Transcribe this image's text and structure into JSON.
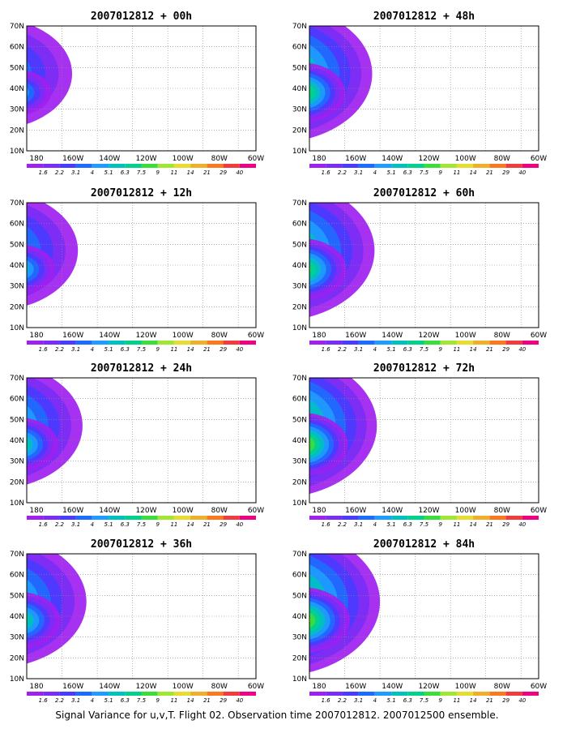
{
  "panels": [
    {
      "title": "2007012812 + 00h",
      "intensity": 0.35
    },
    {
      "title": "2007012812 + 12h",
      "intensity": 0.5
    },
    {
      "title": "2007012812 + 24h",
      "intensity": 0.62
    },
    {
      "title": "2007012812 + 36h",
      "intensity": 0.72
    },
    {
      "title": "2007012812 + 48h",
      "intensity": 0.8
    },
    {
      "title": "2007012812 + 60h",
      "intensity": 0.86
    },
    {
      "title": "2007012812 + 72h",
      "intensity": 0.92
    },
    {
      "title": "2007012812 + 84h",
      "intensity": 1.0
    }
  ],
  "lat_ticks": [
    "70N",
    "60N",
    "50N",
    "40N",
    "30N",
    "20N",
    "10N"
  ],
  "lon_ticks": [
    "180",
    "160W",
    "140W",
    "120W",
    "100W",
    "80W",
    "60W"
  ],
  "colorbar": {
    "labels": [
      "1.6",
      "2.2",
      "3.1",
      "4",
      "5.1",
      "6.3",
      "7.5",
      "9",
      "11",
      "14",
      "21",
      "29",
      "40"
    ],
    "colors": [
      "#a020f0",
      "#7b2cf5",
      "#4a3cff",
      "#1e6cff",
      "#1e9cff",
      "#00c0c0",
      "#00d28c",
      "#3cdc3c",
      "#a0e632",
      "#e6dc32",
      "#f0af28",
      "#fa7820",
      "#f03c3c",
      "#f00082"
    ]
  },
  "caption": "Signal Variance for u,v,T. Flight 02. Observation time 2007012812. 2007012500 ensemble."
}
